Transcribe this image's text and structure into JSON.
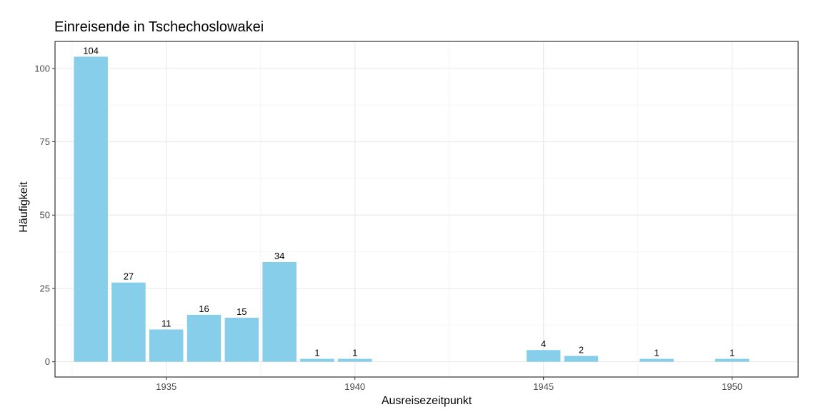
{
  "chart_data": {
    "type": "bar",
    "title": "Einreisende in Tschechoslowakei",
    "xlabel": "Ausreisezeitpunkt",
    "ylabel": "Häufigkeit",
    "x": [
      1933,
      1934,
      1935,
      1936,
      1937,
      1938,
      1939,
      1940,
      1945,
      1946,
      1948,
      1950
    ],
    "values": [
      104,
      27,
      11,
      16,
      15,
      34,
      1,
      1,
      4,
      2,
      1,
      1
    ],
    "xlim": [
      1932.05,
      1951.75
    ],
    "ylim": [
      -5.2,
      109.2
    ],
    "x_ticks": [
      1935,
      1940,
      1945,
      1950
    ],
    "y_ticks": [
      0,
      25,
      50,
      75,
      100
    ],
    "grid": true,
    "colors": {
      "bar": "#87ceeb",
      "panel_border": "#333333",
      "grid_major": "#ebebeb",
      "grid_minor": "#f5f5f5"
    }
  }
}
